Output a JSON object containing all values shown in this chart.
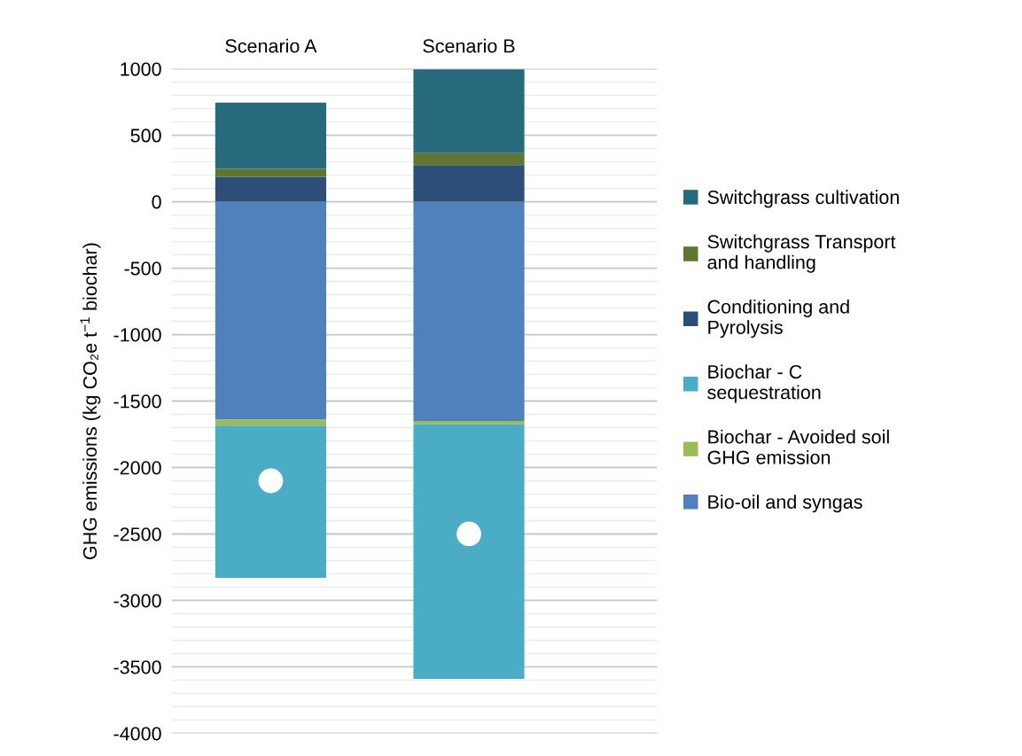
{
  "chart_data": {
    "type": "bar",
    "stacked": true,
    "ylabel": "GHG emissions (kg CO₂e t$^{−1}$ biochar)",
    "categories": [
      "Scenario A",
      "Scenario B"
    ],
    "series": [
      {
        "name": "Bio-oil and syngas",
        "color": "#4f81bd",
        "values": [
          -1640,
          -1650
        ]
      },
      {
        "name": "Biochar - Avoided soil GHG emission",
        "color": "#9bbb59",
        "values": [
          -45,
          -25
        ]
      },
      {
        "name": "Biochar - C sequestration",
        "color": "#4bacc6",
        "values": [
          -1145,
          -1915
        ]
      },
      {
        "name": "Conditioning and Pyrolysis",
        "color": "#2d4e77",
        "values": [
          187,
          275
        ]
      },
      {
        "name": "Switchgrass Transport and handling",
        "color": "#5f7530",
        "values": [
          60,
          90
        ]
      },
      {
        "name": "Switchgrass cultivation",
        "color": "#276a7c",
        "values": [
          498,
          630
        ]
      },
      {
        "type": "scatter",
        "color": "#ffffff",
        "x": [
          "Scenario A",
          "Scenario B"
        ],
        "values": [
          -2100,
          -2500
        ]
      }
    ],
    "ylim": [
      -4000,
      1000
    ],
    "yticks": [
      -4000,
      -3500,
      -3000,
      -2500,
      -2000,
      -1500,
      -1000,
      -500,
      0,
      500,
      1000
    ],
    "grid": "y",
    "legend": "right",
    "marker": "circle"
  }
}
